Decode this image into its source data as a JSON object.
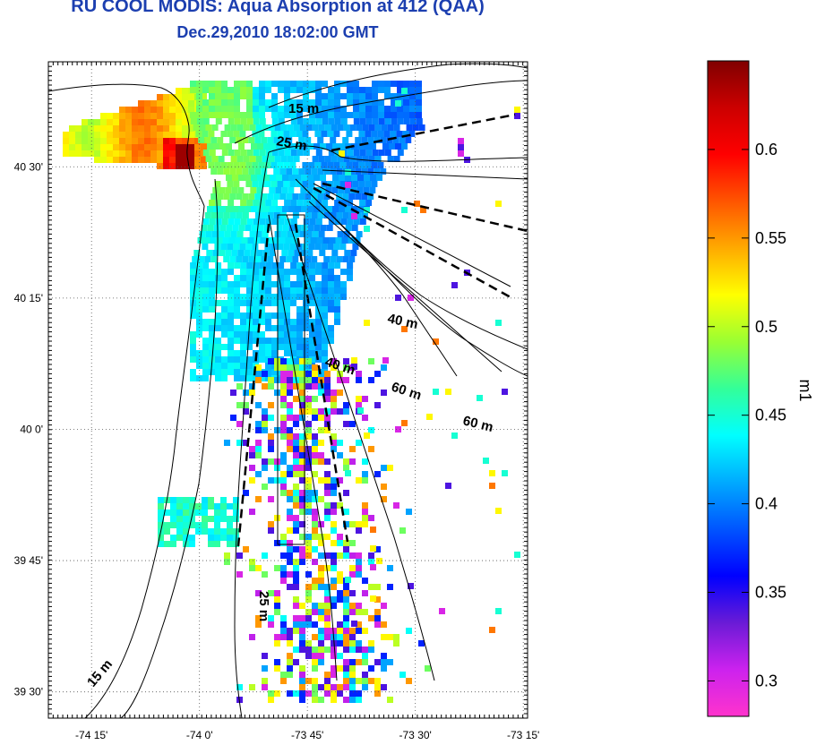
{
  "title": "RU COOL MODIS: Aqua Absorption at 412 (QAA)",
  "subtitle": "Dec.29,2010 18:02:00 GMT",
  "map": {
    "lon_range": [
      -74.35,
      -73.24
    ],
    "lat_range": [
      39.45,
      40.7
    ],
    "lon_ticks": [
      {
        "value": -74.25,
        "label": "-74 15'"
      },
      {
        "value": -74.0,
        "label": "-74 0'"
      },
      {
        "value": -73.75,
        "label": "-73 45'"
      },
      {
        "value": -73.5,
        "label": "-73 30'"
      },
      {
        "value": -73.25,
        "label": "-73 15'"
      }
    ],
    "lat_ticks": [
      {
        "value": 40.5,
        "label": "40 30'"
      },
      {
        "value": 40.25,
        "label": "40 15'"
      },
      {
        "value": 40.0,
        "label": "40 0'"
      },
      {
        "value": 39.75,
        "label": "39 45'"
      },
      {
        "value": 39.5,
        "label": "39 30'"
      }
    ],
    "grid": true,
    "contour_labels": [
      "15 m",
      "25 m",
      "40 m",
      "40 m",
      "60 m",
      "60 m",
      "25 m",
      "15 m"
    ]
  },
  "colorbar": {
    "label": "m1",
    "min": 0.28,
    "max": 0.65,
    "ticks": [
      "0.3",
      "0.35",
      "0.4",
      "0.45",
      "0.5",
      "0.55",
      "0.6"
    ],
    "tick_values": [
      0.3,
      0.35,
      0.4,
      0.45,
      0.5,
      0.55,
      0.6
    ],
    "colors": [
      "#ff33cc",
      "#cc22ee",
      "#6a1bd6",
      "#0000ff",
      "#0055ff",
      "#00aaff",
      "#00ffff",
      "#33ff99",
      "#99ff33",
      "#ffff00",
      "#ffaa00",
      "#ff5500",
      "#ff0000",
      "#cc0000",
      "#800000"
    ]
  },
  "colors": {
    "title": "#1c3fb0",
    "plume_core": "#800000",
    "shelf_water": "#33ddcc"
  }
}
